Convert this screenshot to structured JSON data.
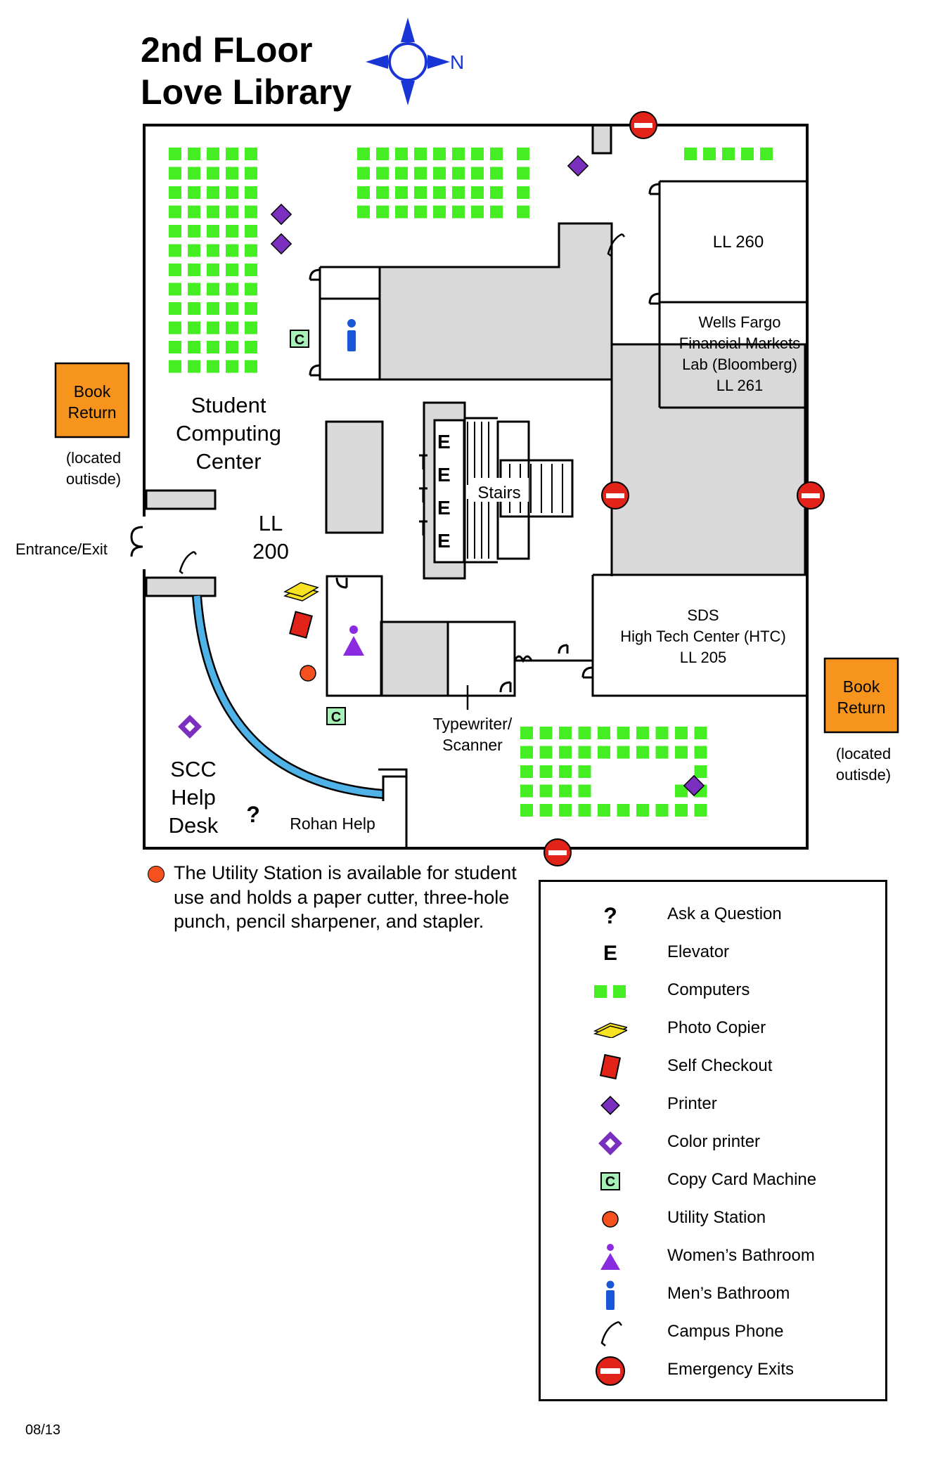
{
  "title": {
    "line1": "2nd FLoor",
    "line2": "Love Library"
  },
  "compass": {
    "north_label": "N"
  },
  "rooms": {
    "ll260": "LL 260",
    "wells_fargo": [
      "Wells Fargo",
      "Financial Markets",
      "Lab (Bloomberg)",
      "LL 261"
    ],
    "student_computing": [
      "Student",
      "Computing",
      "Center"
    ],
    "ll200": [
      "LL",
      "200"
    ],
    "stairs": "Stairs",
    "sds": [
      "SDS",
      "High Tech Center (HTC)",
      "LL 205"
    ],
    "typewriter": [
      "Typewriter/",
      "Scanner"
    ],
    "scc_help": [
      "SCC",
      "Help",
      "Desk"
    ],
    "rohan_help": "Rohan Help",
    "entrance": "Entrance/Exit",
    "elevator_letter": "E",
    "copy_card_letter": "C",
    "question_mark": "?"
  },
  "book_return_left": {
    "label": [
      "Book",
      "Return"
    ],
    "note": [
      "(located",
      "outisde)"
    ]
  },
  "book_return_right": {
    "label": [
      "Book",
      "Return"
    ],
    "note": [
      "(located",
      "outisde)"
    ]
  },
  "utility_note": "The Utility Station is available for student use and holds a paper cutter, three-hole punch, pencil sharpener, and stapler.",
  "legend": [
    {
      "icon": "question-mark-icon",
      "label": "Ask a Question"
    },
    {
      "icon": "elevator-icon",
      "label": "Elevator"
    },
    {
      "icon": "computers-icon",
      "label": "Computers"
    },
    {
      "icon": "photo-copier-icon",
      "label": "Photo Copier"
    },
    {
      "icon": "self-checkout-icon",
      "label": "Self Checkout"
    },
    {
      "icon": "printer-icon",
      "label": "Printer"
    },
    {
      "icon": "color-printer-icon",
      "label": "Color printer"
    },
    {
      "icon": "copy-card-machine-icon",
      "label": "Copy Card Machine"
    },
    {
      "icon": "utility-station-icon",
      "label": "Utility Station"
    },
    {
      "icon": "womens-bathroom-icon",
      "label": "Women’s Bathroom"
    },
    {
      "icon": "mens-bathroom-icon",
      "label": "Men’s Bathroom"
    },
    {
      "icon": "campus-phone-icon",
      "label": "Campus Phone"
    },
    {
      "icon": "emergency-exit-icon",
      "label": "Emergency Exits"
    }
  ],
  "date": "08/13",
  "colors": {
    "computer": "#44ee22",
    "gray_area": "#d9d9d9",
    "book_return": "#f7941d",
    "printer": "#7b2fbe",
    "exit": "#e2231a",
    "help_desk_curve": "#4fb3e8",
    "mens": "#1a57d6",
    "womens": "#8a2be2",
    "compass": "#1a35d6",
    "copy_card": "#a7f0b8"
  }
}
